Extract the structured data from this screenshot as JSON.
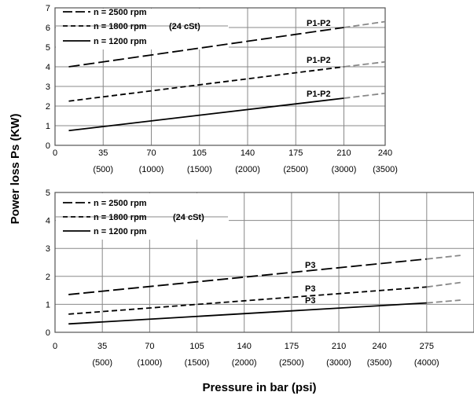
{
  "chart_data": [
    {
      "type": "line",
      "xlim": [
        0,
        240
      ],
      "ylim": [
        0,
        7
      ],
      "x_ticks": [
        "0",
        "35",
        "70",
        "105",
        "140",
        "175",
        "210",
        "240"
      ],
      "x_ticks_psi": [
        "(500)",
        "(1000)",
        "(1500)",
        "(2000)",
        "(2500)",
        "(3000)",
        "(3500)"
      ],
      "y_ticks": [
        "0",
        "1",
        "2",
        "3",
        "4",
        "5",
        "6",
        "7"
      ],
      "grid": true,
      "legend_position": "top-left",
      "legend_note": "(24 cSt)",
      "series": [
        {
          "name": "n = 2500 rpm",
          "style": "long-dash",
          "x": [
            10,
            210
          ],
          "y": [
            4.0,
            6.0
          ],
          "extrapolated_to": [
            240,
            6.3
          ]
        },
        {
          "name": "n = 1800 rpm",
          "style": "dash",
          "x": [
            10,
            210
          ],
          "y": [
            2.25,
            4.0
          ],
          "extrapolated_to": [
            240,
            4.25
          ]
        },
        {
          "name": "n = 1200 rpm",
          "style": "solid",
          "x": [
            10,
            210
          ],
          "y": [
            0.75,
            2.4
          ],
          "extrapolated_to": [
            240,
            2.65
          ]
        }
      ],
      "annotations": [
        "P1-P2",
        "P1-P2",
        "P1-P2"
      ]
    },
    {
      "type": "line",
      "xlim": [
        0,
        300
      ],
      "ylim": [
        0,
        5
      ],
      "x_ticks": [
        "0",
        "35",
        "70",
        "105",
        "140",
        "175",
        "210",
        "240",
        "275"
      ],
      "x_ticks_psi": [
        "(500)",
        "(1000)",
        "(1500)",
        "(2000)",
        "(2500)",
        "(3000)",
        "(3500)",
        "(4000)"
      ],
      "y_ticks": [
        "0",
        "1",
        "2",
        "3",
        "4",
        "5"
      ],
      "grid": true,
      "legend_position": "top-left",
      "legend_note": "(24 cSt)",
      "series": [
        {
          "name": "n = 2500 rpm",
          "style": "long-dash",
          "x": [
            10,
            275
          ],
          "y": [
            1.35,
            2.62
          ],
          "extrapolated_to": [
            300,
            2.75
          ]
        },
        {
          "name": "n = 1800 rpm",
          "style": "dash",
          "x": [
            10,
            275
          ],
          "y": [
            0.65,
            1.62
          ],
          "extrapolated_to": [
            300,
            1.78
          ]
        },
        {
          "name": "n = 1200 rpm",
          "style": "solid",
          "x": [
            10,
            275
          ],
          "y": [
            0.3,
            1.05
          ],
          "extrapolated_to": [
            300,
            1.15
          ]
        }
      ],
      "annotations": [
        "P3",
        "P3",
        "P3"
      ]
    }
  ],
  "ylabel": "Power loss Ps (KW)",
  "xlabel": "Pressure in bar (psi)",
  "colors": {
    "grid": "#888888",
    "frame": "#555555",
    "line": "#000000",
    "extrapolation": "#888888"
  }
}
